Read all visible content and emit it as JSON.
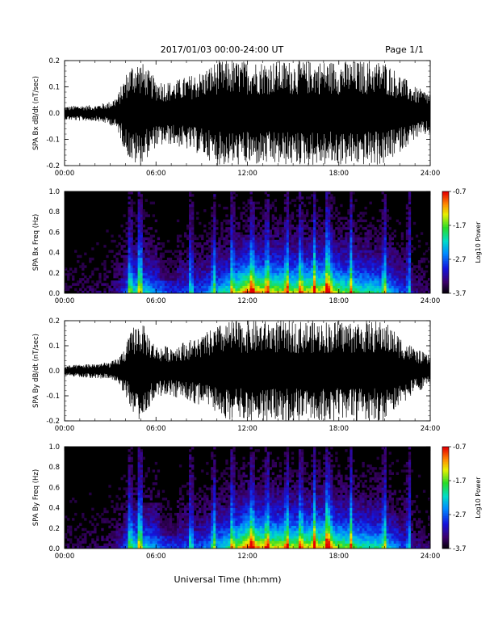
{
  "header": {
    "title": "2017/01/03  00:00-24:00 UT",
    "page_label": "Page 1/1"
  },
  "footer": {
    "xlabel": "Universal Time (hh:mm)"
  },
  "chart_data": [
    {
      "type": "line",
      "ylabel": "SPA Bx dB/dt (nT/sec)",
      "x_range_hours": [
        0,
        24
      ],
      "ylim": [
        -0.2,
        0.2
      ],
      "yticks": [
        "0.2",
        "0.1",
        "0.0",
        "-0.1",
        "-0.2"
      ],
      "xticks": [
        "00:00",
        "06:00",
        "12:00",
        "18:00",
        "24:00"
      ],
      "envelope": {
        "x": [
          0,
          1,
          2,
          3,
          3.5,
          4,
          4.5,
          5,
          6,
          7,
          8,
          9,
          10,
          11,
          12,
          13,
          14,
          15,
          16,
          17,
          18,
          19,
          20,
          21,
          22,
          23,
          24
        ],
        "amplitude": [
          0.025,
          0.03,
          0.03,
          0.045,
          0.07,
          0.15,
          0.2,
          0.2,
          0.13,
          0.12,
          0.14,
          0.16,
          0.2,
          0.2,
          0.2,
          0.2,
          0.2,
          0.2,
          0.2,
          0.2,
          0.2,
          0.2,
          0.2,
          0.2,
          0.15,
          0.1,
          0.08
        ]
      }
    },
    {
      "type": "heatmap",
      "ylabel": "SPA Bx Freq (Hz)",
      "x_range_hours": [
        0,
        24
      ],
      "ylim": [
        0,
        1.0
      ],
      "yticks": [
        "1.0",
        "0.8",
        "0.6",
        "0.4",
        "0.2",
        "0.0"
      ],
      "xticks": [
        "00:00",
        "06:00",
        "12:00",
        "18:00",
        "24:00"
      ],
      "colorbar": {
        "label": "Log10 Power",
        "ticks": [
          "-0.7",
          "-1.7",
          "-2.7",
          "-3.7"
        ],
        "range": [
          -3.7,
          -0.7
        ]
      }
    },
    {
      "type": "line",
      "ylabel": "SPA By dB/dt (nT/sec)",
      "x_range_hours": [
        0,
        24
      ],
      "ylim": [
        -0.2,
        0.2
      ],
      "yticks": [
        "0.2",
        "0.1",
        "0.0",
        "-0.1",
        "-0.2"
      ],
      "xticks": [
        "00:00",
        "06:00",
        "12:00",
        "18:00",
        "24:00"
      ],
      "envelope": {
        "x": [
          0,
          1,
          2,
          3,
          3.5,
          4,
          4.5,
          5,
          6,
          7,
          8,
          9,
          10,
          11,
          12,
          13,
          14,
          15,
          16,
          17,
          18,
          19,
          20,
          21,
          22,
          23,
          24
        ],
        "amplitude": [
          0.02,
          0.025,
          0.03,
          0.035,
          0.05,
          0.1,
          0.18,
          0.2,
          0.1,
          0.1,
          0.12,
          0.14,
          0.18,
          0.2,
          0.2,
          0.2,
          0.2,
          0.2,
          0.2,
          0.2,
          0.2,
          0.2,
          0.2,
          0.2,
          0.14,
          0.09,
          0.06
        ]
      }
    },
    {
      "type": "heatmap",
      "ylabel": "SPA By Freq (Hz)",
      "x_range_hours": [
        0,
        24
      ],
      "ylim": [
        0,
        1.0
      ],
      "yticks": [
        "1.0",
        "0.8",
        "0.6",
        "0.4",
        "0.2",
        "0.0"
      ],
      "xticks": [
        "00:00",
        "06:00",
        "12:00",
        "18:00",
        "24:00"
      ],
      "colorbar": {
        "label": "Log10 Power",
        "ticks": [
          "-0.7",
          "-1.7",
          "-2.7",
          "-3.7"
        ],
        "range": [
          -3.7,
          -0.7
        ]
      }
    }
  ]
}
